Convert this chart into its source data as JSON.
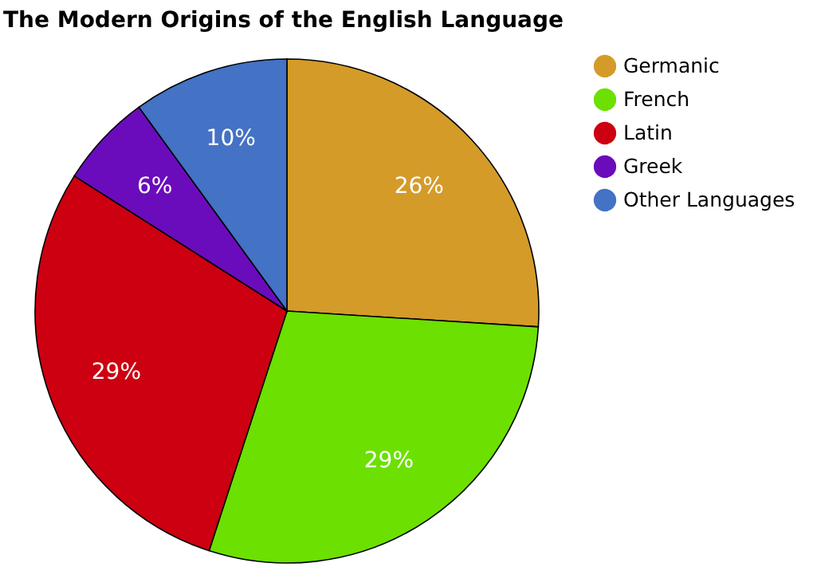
{
  "chart_data": {
    "type": "pie",
    "title": "The Modern Origins of the English Language",
    "categories": [
      "Germanic",
      "French",
      "Latin",
      "Greek",
      "Other Languages"
    ],
    "values": [
      26,
      29,
      29,
      6,
      10
    ],
    "colors": [
      "#d49b29",
      "#6ce000",
      "#cc0011",
      "#6a0cbc",
      "#4472c4"
    ],
    "value_labels": [
      "26%",
      "29%",
      "29%",
      "6%",
      "10%"
    ],
    "legend": "top right"
  }
}
